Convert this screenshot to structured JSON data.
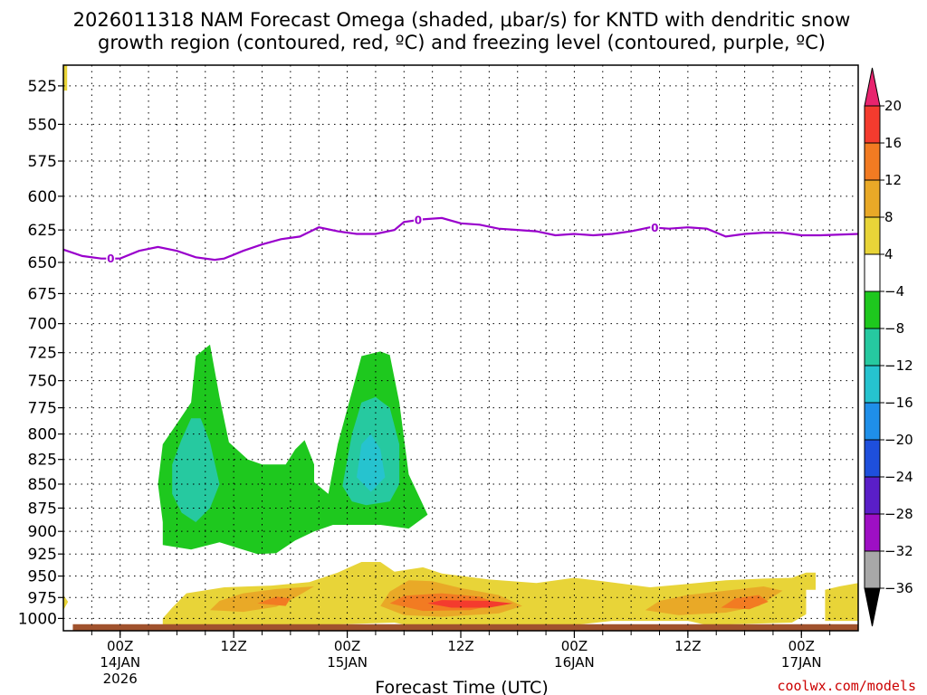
{
  "title_line1": "2026011318 NAM Forecast Omega (shaded, μbar/s) for KNTD with dendritic snow",
  "title_line2": "growth region (contoured, red, ºC) and freezing level (contoured, purple, ºC)",
  "credit": "coolwx.com/models",
  "colors": {
    "freezing_line": "#9900cc",
    "ground": "#a0522d",
    "credit": "#cc0000"
  },
  "chart_data": {
    "type": "heatmap",
    "xlabel": "Forecast Time (UTC)",
    "x_ticks": [
      {
        "hour": 6,
        "label": "00Z",
        "date": "14JAN",
        "year": "2026"
      },
      {
        "hour": 18,
        "label": "12Z",
        "date": "",
        "year": ""
      },
      {
        "hour": 30,
        "label": "00Z",
        "date": "15JAN",
        "year": ""
      },
      {
        "hour": 42,
        "label": "12Z",
        "date": "",
        "year": ""
      },
      {
        "hour": 54,
        "label": "00Z",
        "date": "16JAN",
        "year": ""
      },
      {
        "hour": 66,
        "label": "12Z",
        "date": "",
        "year": ""
      },
      {
        "hour": 78,
        "label": "00Z",
        "date": "17JAN",
        "year": ""
      }
    ],
    "xlim_hours": [
      0,
      84
    ],
    "y_axis": "pressure (mb), inverted, log",
    "y_ticks": [
      525,
      550,
      575,
      600,
      625,
      650,
      675,
      700,
      725,
      750,
      775,
      800,
      825,
      850,
      875,
      900,
      925,
      950,
      975,
      1000
    ],
    "ylim": [
      512,
      1015
    ],
    "grid": true,
    "colorbar": {
      "levels": [
        "20",
        "16",
        "12",
        "8",
        "4",
        "−4",
        "−8",
        "−12",
        "−16",
        "−20",
        "−24",
        "−28",
        "−32",
        "−36"
      ],
      "colors": [
        "#e8246e",
        "#f43b2e",
        "#f27b22",
        "#e9a927",
        "#e8d438",
        "#ffffff",
        "#1ec81e",
        "#26c9a0",
        "#26c3cf",
        "#1f8fe9",
        "#1e4fdc",
        "#5a1ec8",
        "#9e0fc4",
        "#a8a8a8",
        "#000000"
      ]
    },
    "freezing_level": {
      "label": "0",
      "points": [
        [
          0,
          640
        ],
        [
          2,
          645
        ],
        [
          4,
          647
        ],
        [
          6,
          647
        ],
        [
          8,
          641
        ],
        [
          10,
          638
        ],
        [
          12,
          641
        ],
        [
          14,
          646
        ],
        [
          16,
          648
        ],
        [
          17,
          647
        ],
        [
          19,
          641
        ],
        [
          21,
          636
        ],
        [
          23,
          632
        ],
        [
          25,
          630
        ],
        [
          27,
          623
        ],
        [
          29,
          626
        ],
        [
          31,
          628
        ],
        [
          33,
          628
        ],
        [
          35,
          625
        ],
        [
          36,
          619
        ],
        [
          38,
          617
        ],
        [
          40,
          616
        ],
        [
          42,
          620
        ],
        [
          44,
          621
        ],
        [
          46,
          624
        ],
        [
          48,
          625
        ],
        [
          50,
          626
        ],
        [
          52,
          629
        ],
        [
          54,
          628
        ],
        [
          56,
          629
        ],
        [
          58,
          628
        ],
        [
          60,
          626
        ],
        [
          62,
          623
        ],
        [
          64,
          624
        ],
        [
          66,
          623
        ],
        [
          68,
          624
        ],
        [
          70,
          630
        ],
        [
          72,
          628
        ],
        [
          74,
          627
        ],
        [
          76,
          627
        ],
        [
          78,
          629
        ],
        [
          80,
          629
        ],
        [
          84,
          628
        ]
      ]
    },
    "omega_regions": [
      {
        "name": "ascent-minus-4",
        "level": -4,
        "color": "#1ec81e",
        "points": [
          [
            10.5,
            915
          ],
          [
            13.5,
            920
          ],
          [
            16.5,
            912
          ],
          [
            20.5,
            925
          ],
          [
            22.5,
            924
          ],
          [
            24.5,
            910
          ],
          [
            26.5,
            900
          ],
          [
            28.5,
            893
          ],
          [
            33.5,
            893
          ],
          [
            36.5,
            897
          ],
          [
            38.5,
            882
          ],
          [
            36.5,
            840
          ],
          [
            35.5,
            770
          ],
          [
            34.5,
            727
          ],
          [
            33.5,
            724
          ],
          [
            31.5,
            728
          ],
          [
            30.5,
            760
          ],
          [
            29.0,
            810
          ],
          [
            28.0,
            860
          ],
          [
            26.5,
            848
          ],
          [
            26.5,
            830
          ],
          [
            25.5,
            806
          ],
          [
            24.5,
            815
          ],
          [
            23.5,
            830
          ],
          [
            21.0,
            830
          ],
          [
            19.5,
            825
          ],
          [
            17.5,
            808
          ],
          [
            16.5,
            765
          ],
          [
            15.5,
            718
          ],
          [
            14.0,
            728
          ],
          [
            13.5,
            770
          ],
          [
            12.0,
            790
          ],
          [
            10.5,
            810
          ],
          [
            10.0,
            850
          ],
          [
            10.5,
            890
          ]
        ]
      },
      {
        "name": "ascent-minus-8-a",
        "level": -8,
        "color": "#26c9a0",
        "points": [
          [
            11.5,
            860
          ],
          [
            12.5,
            880
          ],
          [
            14.0,
            890
          ],
          [
            15.5,
            875
          ],
          [
            16.5,
            850
          ],
          [
            15.5,
            808
          ],
          [
            14.5,
            785
          ],
          [
            13.5,
            785
          ],
          [
            12.5,
            805
          ],
          [
            11.5,
            830
          ]
        ]
      },
      {
        "name": "ascent-minus-8-b",
        "level": -8,
        "color": "#26c9a0",
        "points": [
          [
            29.5,
            852
          ],
          [
            30.5,
            868
          ],
          [
            32.0,
            872
          ],
          [
            34.5,
            868
          ],
          [
            35.5,
            850
          ],
          [
            35.5,
            810
          ],
          [
            34.5,
            775
          ],
          [
            33.0,
            765
          ],
          [
            31.5,
            770
          ],
          [
            30.5,
            800
          ]
        ]
      },
      {
        "name": "ascent-minus-12",
        "level": -12,
        "color": "#26c3cf",
        "points": [
          [
            31.0,
            843
          ],
          [
            32.5,
            858
          ],
          [
            34.0,
            843
          ],
          [
            33.5,
            815
          ],
          [
            32.5,
            800
          ],
          [
            31.5,
            810
          ]
        ]
      },
      {
        "name": "descent-4",
        "level": 4,
        "color": "#e8d438",
        "points": [
          [
            10.5,
            1000
          ],
          [
            11.5,
            987
          ],
          [
            13.0,
            970
          ],
          [
            17.0,
            963
          ],
          [
            22.0,
            961
          ],
          [
            26.0,
            957
          ],
          [
            29.0,
            946
          ],
          [
            31.5,
            934
          ],
          [
            33.5,
            934
          ],
          [
            35.0,
            945
          ],
          [
            38.0,
            940
          ],
          [
            40.0,
            947
          ],
          [
            45.0,
            954
          ],
          [
            50.0,
            958
          ],
          [
            54.0,
            952
          ],
          [
            57.0,
            956
          ],
          [
            62.0,
            963
          ],
          [
            66.0,
            959
          ],
          [
            70.0,
            955
          ],
          [
            74.0,
            953
          ],
          [
            77.0,
            952
          ],
          [
            78.5,
            946
          ],
          [
            79.5,
            946
          ],
          [
            79.5,
            966
          ],
          [
            78.5,
            966
          ],
          [
            78.5,
            995
          ],
          [
            77.0,
            1005
          ],
          [
            68.0,
            1008
          ],
          [
            66.0,
            1003
          ],
          [
            58.0,
            1003
          ],
          [
            54.0,
            1008
          ],
          [
            46.0,
            1008
          ],
          [
            42.0,
            1012
          ],
          [
            38.0,
            1012
          ],
          [
            35.0,
            1005
          ],
          [
            27.0,
            1008
          ],
          [
            18.0,
            1008
          ],
          [
            10.5,
            1010
          ]
        ]
      },
      {
        "name": "descent-4-east",
        "level": 4,
        "color": "#e8d438",
        "points": [
          [
            80.5,
            966
          ],
          [
            82.0,
            962
          ],
          [
            84,
            958
          ],
          [
            84,
            1003
          ],
          [
            80.5,
            1003
          ]
        ]
      },
      {
        "name": "descent-4-west",
        "level": 4,
        "color": "#e8d438",
        "points": [
          [
            0,
            972
          ],
          [
            0.5,
            980
          ],
          [
            0,
            990
          ]
        ]
      },
      {
        "name": "descent-4-top",
        "level": 4,
        "color": "#e8d438",
        "points": [
          [
            0,
            512
          ],
          [
            0.4,
            512
          ],
          [
            0.4,
            528
          ],
          [
            0,
            528
          ]
        ]
      },
      {
        "name": "descent-8-a",
        "level": 8,
        "color": "#e9a927",
        "points": [
          [
            15.5,
            990
          ],
          [
            16.5,
            979
          ],
          [
            19.0,
            970
          ],
          [
            22.5,
            965
          ],
          [
            26.5,
            962
          ],
          [
            24.5,
            975
          ],
          [
            22.5,
            986
          ],
          [
            19.0,
            992
          ]
        ]
      },
      {
        "name": "descent-8-b",
        "level": 8,
        "color": "#e9a927",
        "points": [
          [
            33.5,
            985
          ],
          [
            34.5,
            968
          ],
          [
            36.5,
            955
          ],
          [
            39.0,
            956
          ],
          [
            42.0,
            964
          ],
          [
            46.0,
            972
          ],
          [
            48.5,
            985
          ],
          [
            46.0,
            994
          ],
          [
            40.0,
            998
          ],
          [
            36.0,
            996
          ]
        ]
      },
      {
        "name": "descent-8-c",
        "level": 8,
        "color": "#e9a927",
        "points": [
          [
            61.5,
            990
          ],
          [
            63.0,
            979
          ],
          [
            66.0,
            972
          ],
          [
            70.0,
            967
          ],
          [
            74.0,
            962
          ],
          [
            76.0,
            967
          ],
          [
            73.5,
            985
          ],
          [
            70.0,
            993
          ],
          [
            65.0,
            996
          ]
        ]
      },
      {
        "name": "descent-12-a",
        "level": 12,
        "color": "#f27b22",
        "points": [
          [
            20.5,
            982
          ],
          [
            22.5,
            974
          ],
          [
            24.0,
            976
          ],
          [
            23.5,
            985
          ]
        ]
      },
      {
        "name": "descent-12-b",
        "level": 12,
        "color": "#f27b22",
        "points": [
          [
            34.5,
            982
          ],
          [
            36.0,
            973
          ],
          [
            40.0,
            970
          ],
          [
            44.0,
            974
          ],
          [
            46.0,
            983
          ],
          [
            43.0,
            990
          ],
          [
            38.0,
            991
          ]
        ]
      },
      {
        "name": "descent-12-c",
        "level": 12,
        "color": "#f27b22",
        "points": [
          [
            69.5,
            987
          ],
          [
            71.0,
            976
          ],
          [
            73.5,
            972
          ],
          [
            74.5,
            980
          ],
          [
            72.5,
            989
          ]
        ]
      },
      {
        "name": "descent-16",
        "level": 16,
        "color": "#f43b2e",
        "points": [
          [
            38.5,
            982
          ],
          [
            40.0,
            978
          ],
          [
            45.0,
            979
          ],
          [
            47.5,
            982
          ],
          [
            45.0,
            987
          ],
          [
            41.0,
            987
          ]
        ]
      }
    ],
    "ground_pressure": 1007
  }
}
